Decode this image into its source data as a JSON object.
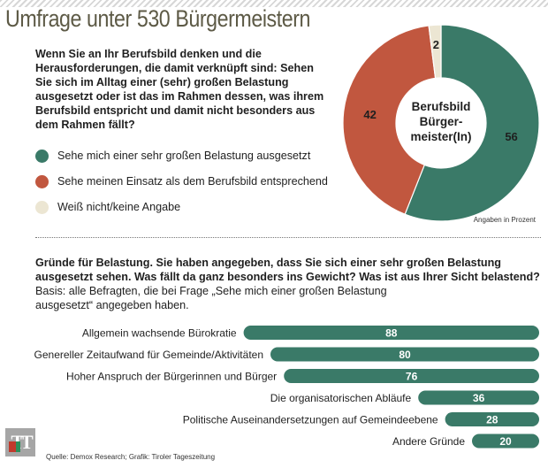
{
  "header": {
    "title": "Umfrage unter 530 Bürgermeistern"
  },
  "question": {
    "text": "Wenn Sie an Ihr Berufsbild denken und die Herausforderungen, die damit verknüpft sind: Sehen Sie sich im Alltag einer (sehr) großen Belastung ausgesetzt oder ist das im Rahmen dessen, was ihrem Berufsbild entspricht und damit nicht besonders aus dem Rahmen fällt?"
  },
  "colors": {
    "teal": "#3a7a68",
    "red": "#c1573f",
    "cream": "#ece6d3",
    "text": "#1f1f1f",
    "title": "#5d5a46"
  },
  "legend": [
    {
      "label": "Sehe mich einer sehr großen Belastung ausgesetzt",
      "color": "#3a7a68"
    },
    {
      "label": "Sehe meinen Einsatz als dem Berufsbild entsprechend",
      "color": "#c1573f"
    },
    {
      "label": "Weiß nicht/keine Angabe",
      "color": "#ece6d3"
    }
  ],
  "unit_note": "Angaben in Prozent",
  "question2": {
    "title": "Gründe für Belastung. Sie haben angegeben, dass Sie sich einer sehr großen Belastung ausgesetzt sehen. Was fällt da ganz besonders ins Gewicht? Was ist aus Ihrer Sicht belastend?",
    "basis": "Basis: alle Befragten, die bei Frage „Sehe mich einer großen Belastung ausgesetzt“ angegeben haben."
  },
  "source": "Quelle: Demox Research; Grafik: Tiroler Tageszeitung",
  "logo": {
    "text": "TT"
  },
  "chart_data": [
    {
      "type": "pie",
      "center_label": [
        "Berufsbild",
        "Bürger-",
        "meister(In)"
      ],
      "categories": [
        "Sehe mich einer sehr großen Belastung ausgesetzt",
        "Sehe meinen Einsatz als dem Berufsbild entsprechend",
        "Weiß nicht/keine Angabe"
      ],
      "values": [
        56,
        42,
        2
      ],
      "colors": [
        "#3a7a68",
        "#c1573f",
        "#ece6d3"
      ],
      "unit": "Angaben in Prozent"
    },
    {
      "type": "bar",
      "orientation": "horizontal",
      "categories": [
        "Allgemein wachsende Bürokratie",
        "Genereller Zeitaufwand für Gemeinde/Aktivitäten",
        "Hoher Anspruch der Bürgerinnen und Bürger",
        "Die organisatorischen Abläufe",
        "Politische Auseinandersetzungen auf Gemeindeebene",
        "Andere Gründe"
      ],
      "values": [
        88,
        80,
        76,
        36,
        28,
        20
      ],
      "xlim": [
        0,
        100
      ],
      "color": "#3a7a68",
      "data_labels": true
    }
  ]
}
